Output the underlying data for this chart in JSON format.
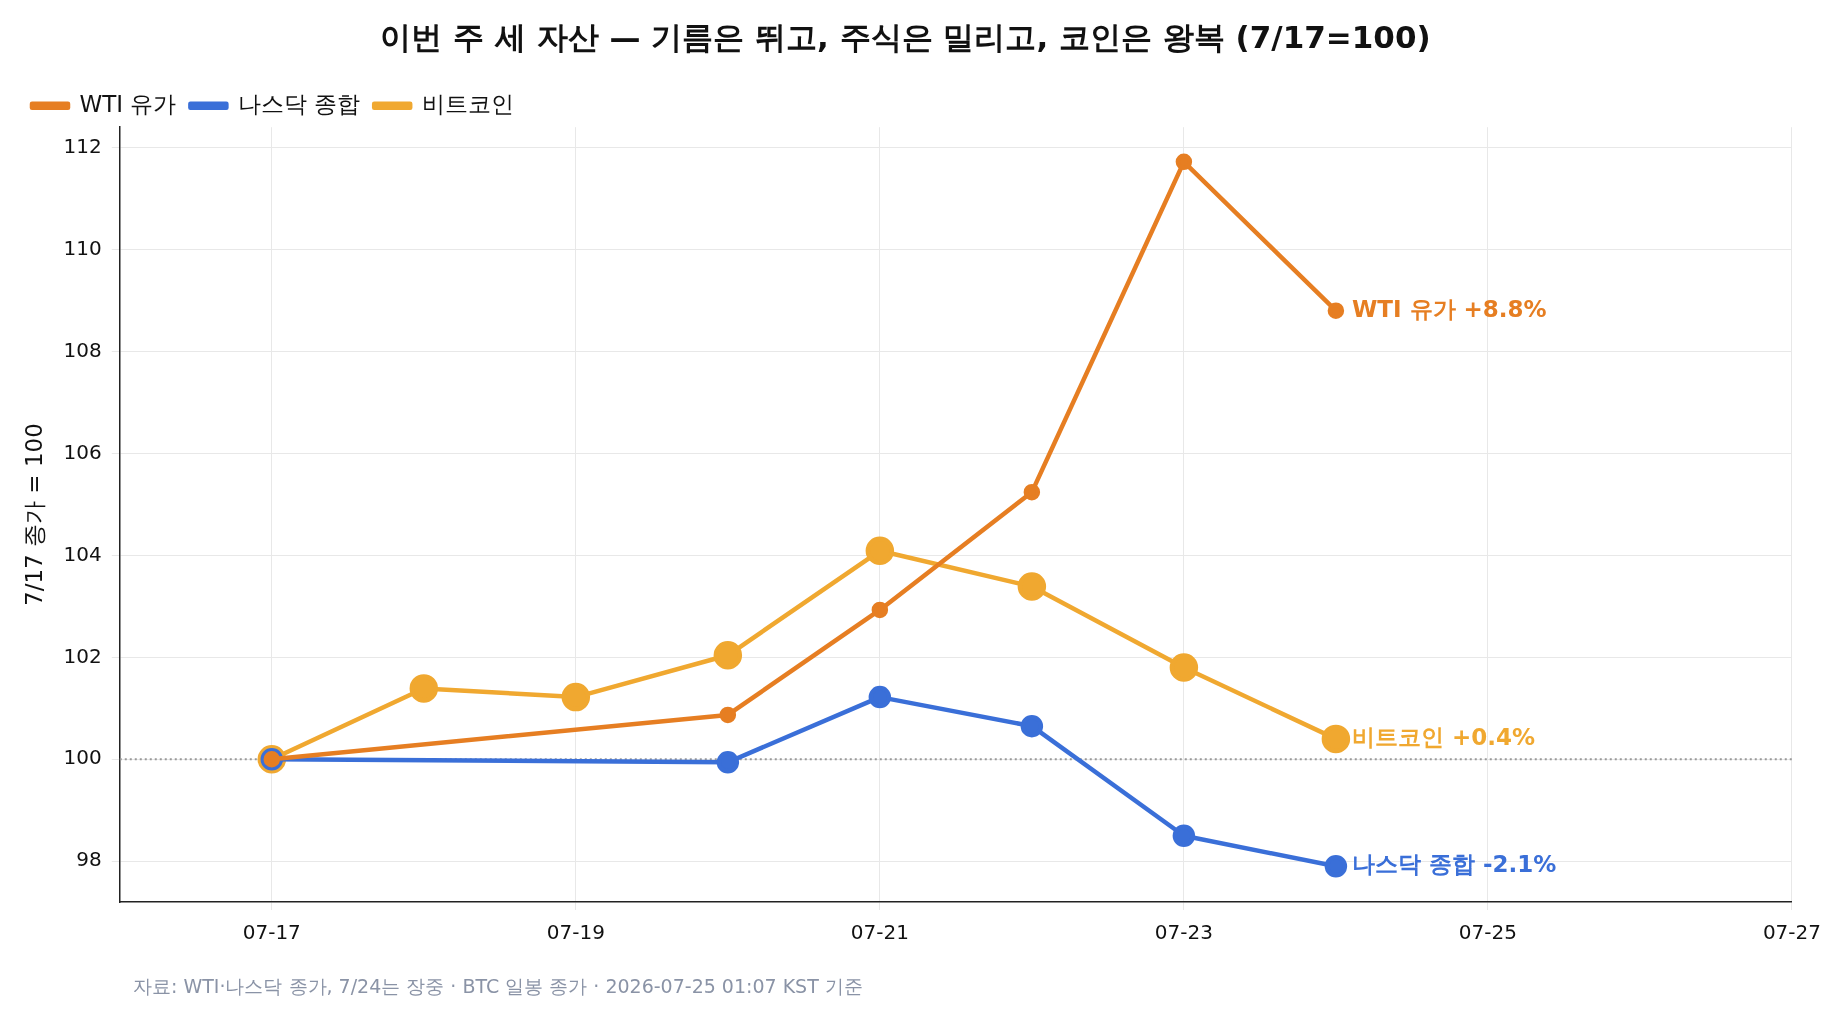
{
  "chart_data": {
    "type": "line",
    "title": "이번 주 세 자산 — 기름은 뛰고, 주식은 밀리고, 코인은 왕복 (7/17=100)",
    "ylabel": "7/17 종가 = 100",
    "xlim": [
      "2026-07-16",
      "2026-07-27"
    ],
    "xticks": [
      {
        "value": "2026-07-17",
        "label": "07-17"
      },
      {
        "value": "2026-07-19",
        "label": "07-19"
      },
      {
        "value": "2026-07-21",
        "label": "07-21"
      },
      {
        "value": "2026-07-23",
        "label": "07-23"
      },
      {
        "value": "2026-07-25",
        "label": "07-25"
      },
      {
        "value": "2026-07-27",
        "label": "07-27"
      }
    ],
    "ylim": [
      97.2,
      112.4
    ],
    "yticks": [
      98,
      100,
      102,
      104,
      106,
      108,
      110,
      112
    ],
    "series": [
      {
        "name": "WTI 유가",
        "color": "#e67e22",
        "x": [
          "2026-07-17",
          "2026-07-20",
          "2026-07-21",
          "2026-07-22",
          "2026-07-23",
          "2026-07-24"
        ],
        "values": [
          100,
          100.87,
          102.93,
          105.24,
          111.72,
          108.8
        ]
      },
      {
        "name": "나스닥 종합",
        "color": "#3a6fd8",
        "x": [
          "2026-07-17",
          "2026-07-20",
          "2026-07-21",
          "2026-07-22",
          "2026-07-23",
          "2026-07-24"
        ],
        "values": [
          100,
          99.94,
          101.22,
          100.65,
          98.5,
          97.9
        ]
      },
      {
        "name": "비트코인",
        "color": "#f0a830",
        "x": [
          "2026-07-17",
          "2026-07-18",
          "2026-07-19",
          "2026-07-20",
          "2026-07-21",
          "2026-07-22",
          "2026-07-23",
          "2026-07-24"
        ],
        "values": [
          100,
          101.39,
          101.22,
          102.04,
          104.09,
          103.39,
          101.8,
          100.4
        ]
      }
    ],
    "ref_lines": [
      {
        "axis": "y",
        "value": 100,
        "color": "#999999",
        "line_style": "dotted"
      }
    ],
    "annotations": [
      {
        "text": "WTI 유가 +8.8%",
        "x": "2026-07-24",
        "y": 108.8
      },
      {
        "text": "비트코인 +0.4%",
        "x": "2026-07-24",
        "y": 100.4
      },
      {
        "text": "나스닥 종합 -2.1%",
        "x": "2026-07-24",
        "y": 97.9
      },
      "자료: WTI·나스닥 종가, 7/24는 장중 · BTC 일봉 종가 · 2026-07-25 01:07 KST 기준"
    ],
    "grid": true,
    "legend": "top left",
    "marker": "circle",
    "line_style": "solid"
  }
}
